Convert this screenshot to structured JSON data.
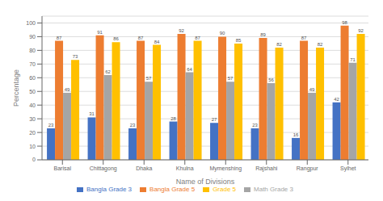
{
  "chart_data": {
    "type": "bar",
    "categories": [
      "Barisal",
      "Chittagong",
      "Dhaka",
      "Khulna",
      "Mymenshing",
      "Rajshahi",
      "Rangpur",
      "Sylhet"
    ],
    "series": [
      {
        "name": "Bangla Grade 3",
        "color": "#4472C4",
        "values": [
          23,
          31,
          23,
          28,
          27,
          23,
          16,
          42
        ]
      },
      {
        "name": "Bangla Grade 5",
        "color": "#ED7D31",
        "values": [
          87,
          91,
          87,
          92,
          90,
          89,
          87,
          98
        ]
      },
      {
        "name": "Math Grade 3",
        "color": "#A5A5A5",
        "values": [
          49,
          62,
          57,
          64,
          57,
          56,
          49,
          71
        ]
      },
      {
        "name": "Grade 5",
        "color": "#FFC000",
        "values": [
          73,
          86,
          84,
          87,
          85,
          82,
          82,
          92
        ]
      }
    ],
    "xlabel": "Name of Divisions",
    "ylabel": "Percentage",
    "ylim": [
      0,
      105
    ],
    "yticks": [
      0,
      10,
      20,
      30,
      40,
      50,
      60,
      70,
      80,
      90,
      100
    ],
    "grid": true,
    "data_labels": true,
    "legend": "bottom"
  }
}
